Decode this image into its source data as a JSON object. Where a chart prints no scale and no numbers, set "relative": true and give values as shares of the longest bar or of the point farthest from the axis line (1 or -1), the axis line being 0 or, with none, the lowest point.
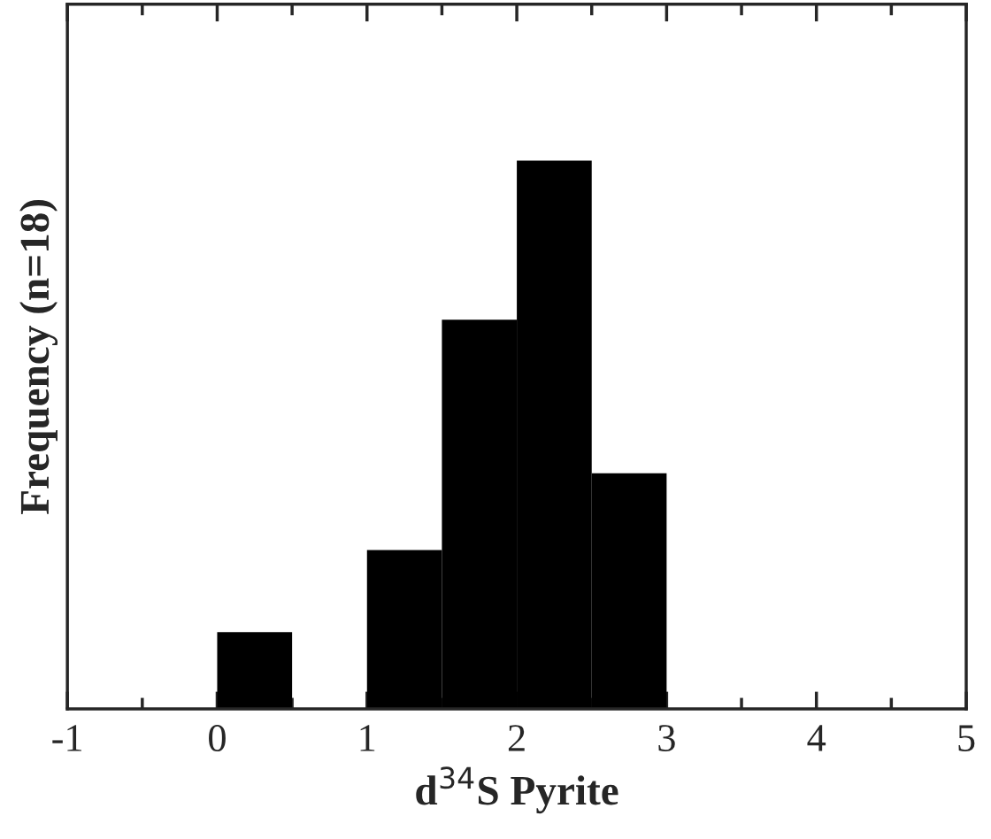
{
  "chart_data": {
    "type": "bar",
    "xlabel": "d$^{34}$S Pyrite",
    "ylabel": "Frequency (n=18)",
    "x": [
      0.25,
      1.25,
      1.75,
      2.25,
      2.75
    ],
    "values": [
      0.14,
      0.29,
      0.71,
      1,
      0.43
    ],
    "relative": true,
    "color": "#000000",
    "xlim": [
      -1,
      5
    ],
    "xticks": [
      {
        "value": -1,
        "label": "-1"
      },
      {
        "value": -0.5,
        "label": null
      },
      {
        "value": 0,
        "label": "0"
      },
      {
        "value": 0.5,
        "label": null
      },
      {
        "value": 1,
        "label": "1"
      },
      {
        "value": 1.5,
        "label": null
      },
      {
        "value": 2,
        "label": "2"
      },
      {
        "value": 2.5,
        "label": null
      },
      {
        "value": 3,
        "label": "3"
      },
      {
        "value": 3.5,
        "label": null
      },
      {
        "value": 4,
        "label": "4"
      },
      {
        "value": 4.5,
        "label": null
      },
      {
        "value": 5,
        "label": "5"
      }
    ],
    "grid": false
  }
}
